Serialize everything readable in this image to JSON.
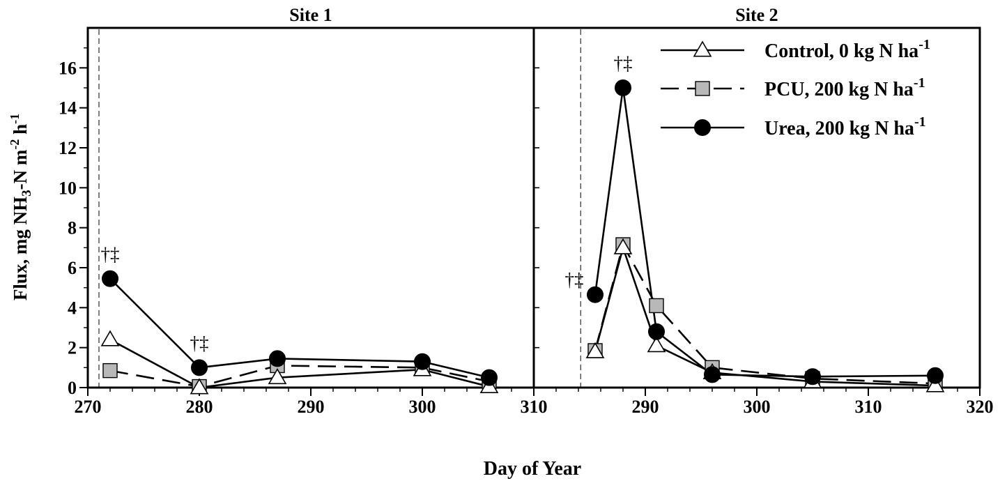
{
  "chart_data": {
    "type": "line",
    "xlabel": "Day of Year",
    "ylabel_parts": {
      "pre": "Flux, mg NH",
      "sub3": "3",
      "mid": "-N m",
      "sup1": "-2",
      "mid2": " h",
      "sup2": "-1"
    },
    "ylim": [
      0,
      18
    ],
    "yticks": [
      0,
      2,
      4,
      6,
      8,
      10,
      12,
      14,
      16
    ],
    "legend": {
      "position": "top-right",
      "entries": [
        {
          "series": "control",
          "text": "Control, 0 kg N ha",
          "sup": "-1"
        },
        {
          "series": "pcu",
          "text": "PCU, 200 kg N ha",
          "sup": "-1"
        },
        {
          "series": "urea",
          "text": "Urea, 200 kg N ha",
          "sup": "-1"
        }
      ]
    },
    "panels": [
      {
        "title": "Site 1",
        "xlim": [
          270,
          310
        ],
        "xticks": [
          270,
          280,
          290,
          300,
          310
        ],
        "fertilization_day": 271,
        "series": [
          {
            "key": "control",
            "style": "solid",
            "marker": "triangle",
            "x": [
              272,
              280,
              287,
              300,
              306
            ],
            "y": [
              2.4,
              0.0,
              0.5,
              0.9,
              0.05
            ]
          },
          {
            "key": "pcu",
            "style": "dashed",
            "marker": "square",
            "x": [
              272,
              280,
              287,
              300,
              306
            ],
            "y": [
              0.85,
              0.05,
              1.1,
              1.0,
              0.3
            ]
          },
          {
            "key": "urea",
            "style": "solid",
            "marker": "circle",
            "x": [
              272,
              280,
              287,
              300,
              306
            ],
            "y": [
              5.45,
              1.0,
              1.45,
              1.3,
              0.5
            ]
          }
        ],
        "annotations": [
          {
            "x": 272,
            "y": 5.45,
            "text": "†‡",
            "place": "above"
          },
          {
            "x": 280,
            "y": 1.0,
            "text": "†‡",
            "place": "above"
          }
        ]
      },
      {
        "title": "Site 2",
        "xlim": [
          280,
          320
        ],
        "xticks": [
          290,
          300,
          310,
          320
        ],
        "fertilization_day": 284.2,
        "series": [
          {
            "key": "control",
            "style": "solid",
            "marker": "triangle",
            "x": [
              285.5,
              288,
              291,
              296,
              305,
              316
            ],
            "y": [
              1.8,
              7.0,
              2.1,
              0.75,
              0.3,
              0.1
            ]
          },
          {
            "key": "pcu",
            "style": "dashed",
            "marker": "square",
            "x": [
              285.5,
              288,
              291,
              296,
              305,
              316
            ],
            "y": [
              1.85,
              7.15,
              4.1,
              1.0,
              0.45,
              0.2
            ]
          },
          {
            "key": "urea",
            "style": "solid",
            "marker": "circle",
            "x": [
              285.5,
              288,
              291,
              296,
              305,
              316
            ],
            "y": [
              4.65,
              15.0,
              2.8,
              0.65,
              0.55,
              0.6
            ]
          }
        ],
        "annotations": [
          {
            "x": 285.5,
            "y": 4.65,
            "text": "†‡",
            "place": "left"
          },
          {
            "x": 288,
            "y": 15.0,
            "text": "†‡",
            "place": "above"
          }
        ]
      }
    ]
  }
}
